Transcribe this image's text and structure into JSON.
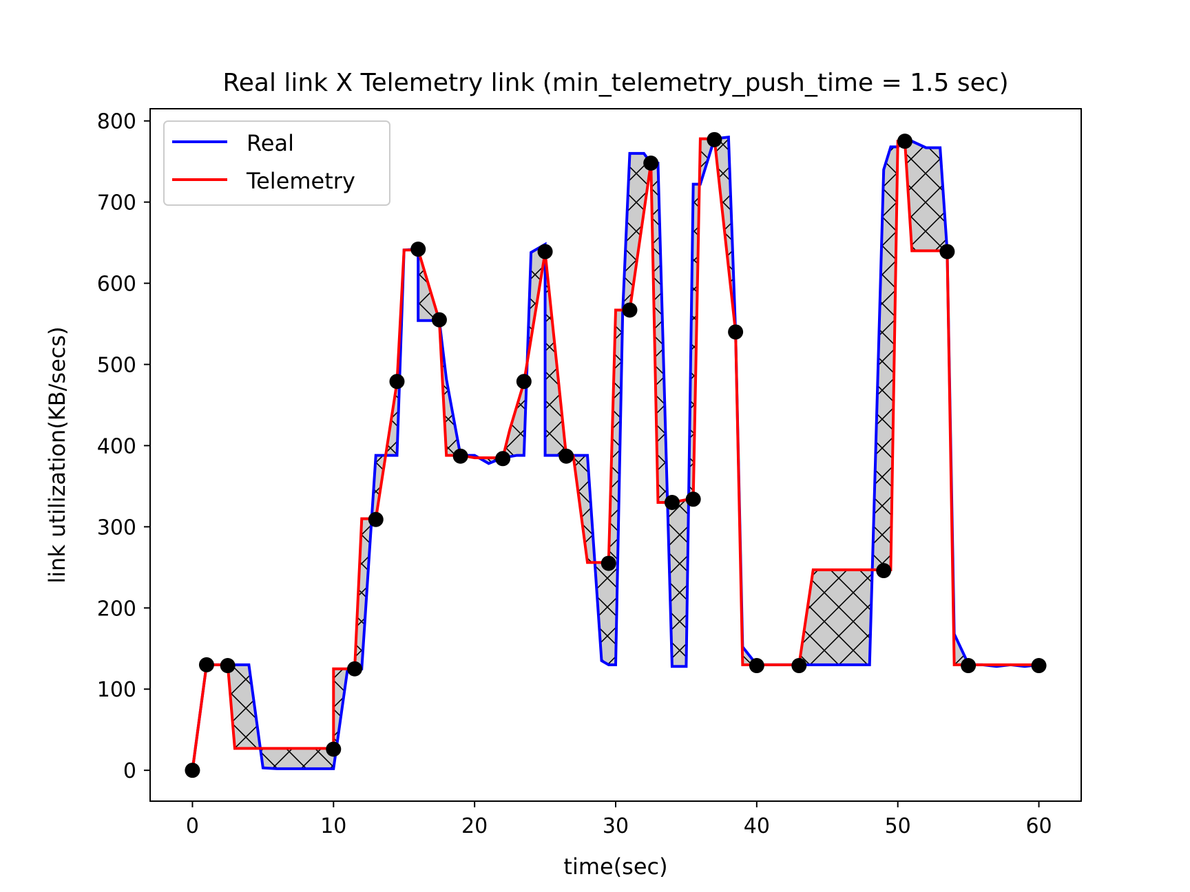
{
  "chart_data": {
    "type": "line",
    "title": "Real link X Telemetry link (min_telemetry_push_time = 1.5 sec)",
    "xlabel": "time(sec)",
    "ylabel": "link utilization(KB/secs)",
    "xlim": [
      -3,
      63
    ],
    "ylim": [
      -38,
      815
    ],
    "xticks": [
      0,
      10,
      20,
      30,
      40,
      50,
      60
    ],
    "yticks": [
      0,
      100,
      200,
      300,
      400,
      500,
      600,
      700,
      800
    ],
    "grid": false,
    "legend_position": "top-left",
    "fill_between": {
      "color": "#cccccc",
      "hatch": "x"
    },
    "series": [
      {
        "name": "Real",
        "color": "#0000ff",
        "x": [
          0,
          1,
          2.5,
          4,
          5,
          6,
          8,
          10,
          11,
          11.5,
          12,
          13,
          14,
          14.5,
          15,
          16,
          16,
          17,
          17.5,
          18,
          19,
          20,
          21,
          22,
          23,
          23.5,
          24,
          25,
          25,
          26.5,
          27,
          28,
          29,
          29.5,
          30,
          30.5,
          31,
          32,
          32.5,
          33,
          34,
          34.5,
          35,
          35.5,
          36,
          37,
          38,
          38.5,
          39,
          40,
          41,
          43,
          44,
          46,
          48,
          49,
          49.5,
          50,
          50.5,
          51,
          52,
          53,
          53.5,
          54,
          55,
          55.2,
          56,
          57,
          58,
          59,
          60
        ],
        "y": [
          0,
          130,
          130,
          130,
          3,
          2,
          2,
          2,
          125,
          125,
          125,
          388,
          388,
          388,
          641,
          642,
          554,
          554,
          554,
          482,
          388,
          388,
          378,
          385,
          388,
          388,
          638,
          648,
          388,
          388,
          388,
          388,
          135,
          130,
          130,
          566,
          760,
          760,
          748,
          748,
          128,
          128,
          128,
          722,
          722,
          778,
          780,
          540,
          152,
          130,
          130,
          130,
          130,
          130,
          130,
          740,
          768,
          768,
          775,
          775,
          767,
          767,
          640,
          168,
          131,
          130,
          130,
          128,
          130,
          128,
          130
        ]
      },
      {
        "name": "Telemetry",
        "color": "#ff0000",
        "x": [
          0,
          1,
          2.5,
          3,
          5,
          8,
          10,
          10,
          11.5,
          12,
          13,
          14.5,
          15,
          16,
          17.5,
          18,
          19,
          20,
          21,
          22,
          22.5,
          23.5,
          25,
          26.5,
          27,
          28,
          29,
          29.5,
          30,
          31,
          32.5,
          33,
          34,
          35.5,
          36,
          37,
          38.5,
          39,
          40,
          41,
          43,
          44,
          46,
          48,
          49,
          49.5,
          50,
          50.5,
          51,
          52,
          53,
          53.5,
          54,
          55.2,
          56,
          60
        ],
        "y": [
          0,
          130,
          130,
          27,
          27,
          27,
          27,
          125,
          125,
          310,
          310,
          478,
          641,
          641,
          554,
          388,
          388,
          385,
          385,
          385,
          420,
          478,
          638,
          387,
          387,
          256,
          256,
          256,
          567,
          567,
          748,
          330,
          330,
          335,
          778,
          778,
          540,
          130,
          130,
          130,
          130,
          247,
          247,
          247,
          247,
          247,
          775,
          775,
          640,
          640,
          640,
          640,
          130,
          130,
          130,
          130
        ]
      },
      {
        "name": "",
        "type": "scatter",
        "color": "#000000",
        "x": [
          0,
          1,
          2.5,
          10,
          11.5,
          13,
          14.5,
          16,
          17.5,
          19,
          22,
          23.5,
          25,
          26.5,
          29.5,
          31,
          32.5,
          34,
          35.5,
          37,
          38.5,
          40,
          43,
          49,
          50.5,
          53.5,
          55,
          60
        ],
        "y": [
          0,
          130,
          129,
          26,
          125,
          309,
          479,
          642,
          555,
          387,
          384,
          479,
          639,
          387,
          255,
          567,
          748,
          330,
          334,
          777,
          540,
          129,
          129,
          246,
          775,
          639,
          129,
          129
        ]
      }
    ]
  }
}
